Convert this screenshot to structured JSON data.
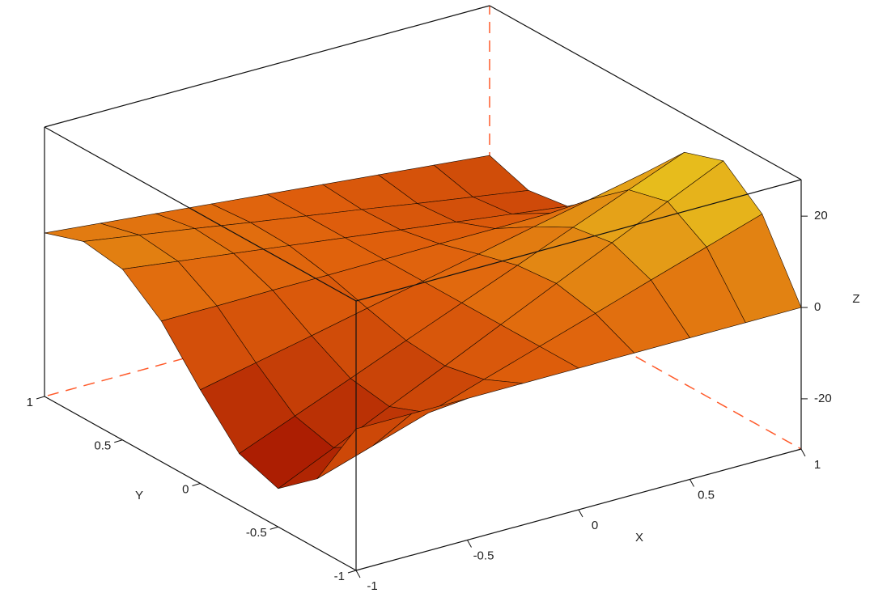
{
  "chart_data": {
    "type": "surface",
    "xlabel": "X",
    "ylabel": "Y",
    "zlabel": "Z",
    "x": [
      -1,
      -0.75,
      -0.5,
      -0.25,
      0,
      0.25,
      0.5,
      0.75,
      1
    ],
    "y": [
      -1,
      -0.75,
      -0.5,
      -0.25,
      0,
      0.25,
      0.5,
      0.75,
      1
    ],
    "z": [
      [
        0,
        -15.7,
        -22.6,
        -19.7,
        -10.5,
        -0.2,
        6.4,
        7.7,
        4.8
      ],
      [
        0,
        -11.8,
        -17,
        -14.8,
        -7.9,
        -0.2,
        4.8,
        5.8,
        3.6
      ],
      [
        0,
        -7.9,
        -11.3,
        -9.9,
        -5.3,
        -0.1,
        3.2,
        3.9,
        2.4
      ],
      [
        0,
        -3.9,
        -5.7,
        -4.9,
        -2.6,
        -0.1,
        1.6,
        1.9,
        1.2
      ],
      [
        0,
        0,
        0,
        0,
        0,
        0,
        0,
        0,
        0
      ],
      [
        0,
        3.9,
        5.7,
        4.9,
        2.6,
        0.1,
        -1.6,
        -1.9,
        -1.2
      ],
      [
        0,
        7.9,
        11.3,
        9.9,
        5.3,
        0.1,
        -3.2,
        -3.9,
        -2.4
      ],
      [
        0,
        11.8,
        17,
        14.8,
        7.9,
        0.2,
        -4.8,
        -5.8,
        -3.6
      ],
      [
        0,
        15.7,
        22.6,
        19.7,
        10.5,
        0.2,
        -6.4,
        -7.7,
        -4.8
      ]
    ],
    "xlim": [
      -1,
      1
    ],
    "ylim": [
      -1,
      1
    ],
    "zlim": [
      -31,
      28
    ],
    "xticks": [
      -1,
      -0.5,
      0,
      0.5,
      1
    ],
    "yticks": [
      -1,
      -0.5,
      0,
      0.5,
      1
    ],
    "zticks": [
      -20,
      0,
      20
    ],
    "colormap": [
      "#a01000",
      "#e0600c",
      "#e8d020"
    ],
    "mesh_color": "#1a0a00",
    "hidden_edge_color": "#ff5a2a"
  }
}
